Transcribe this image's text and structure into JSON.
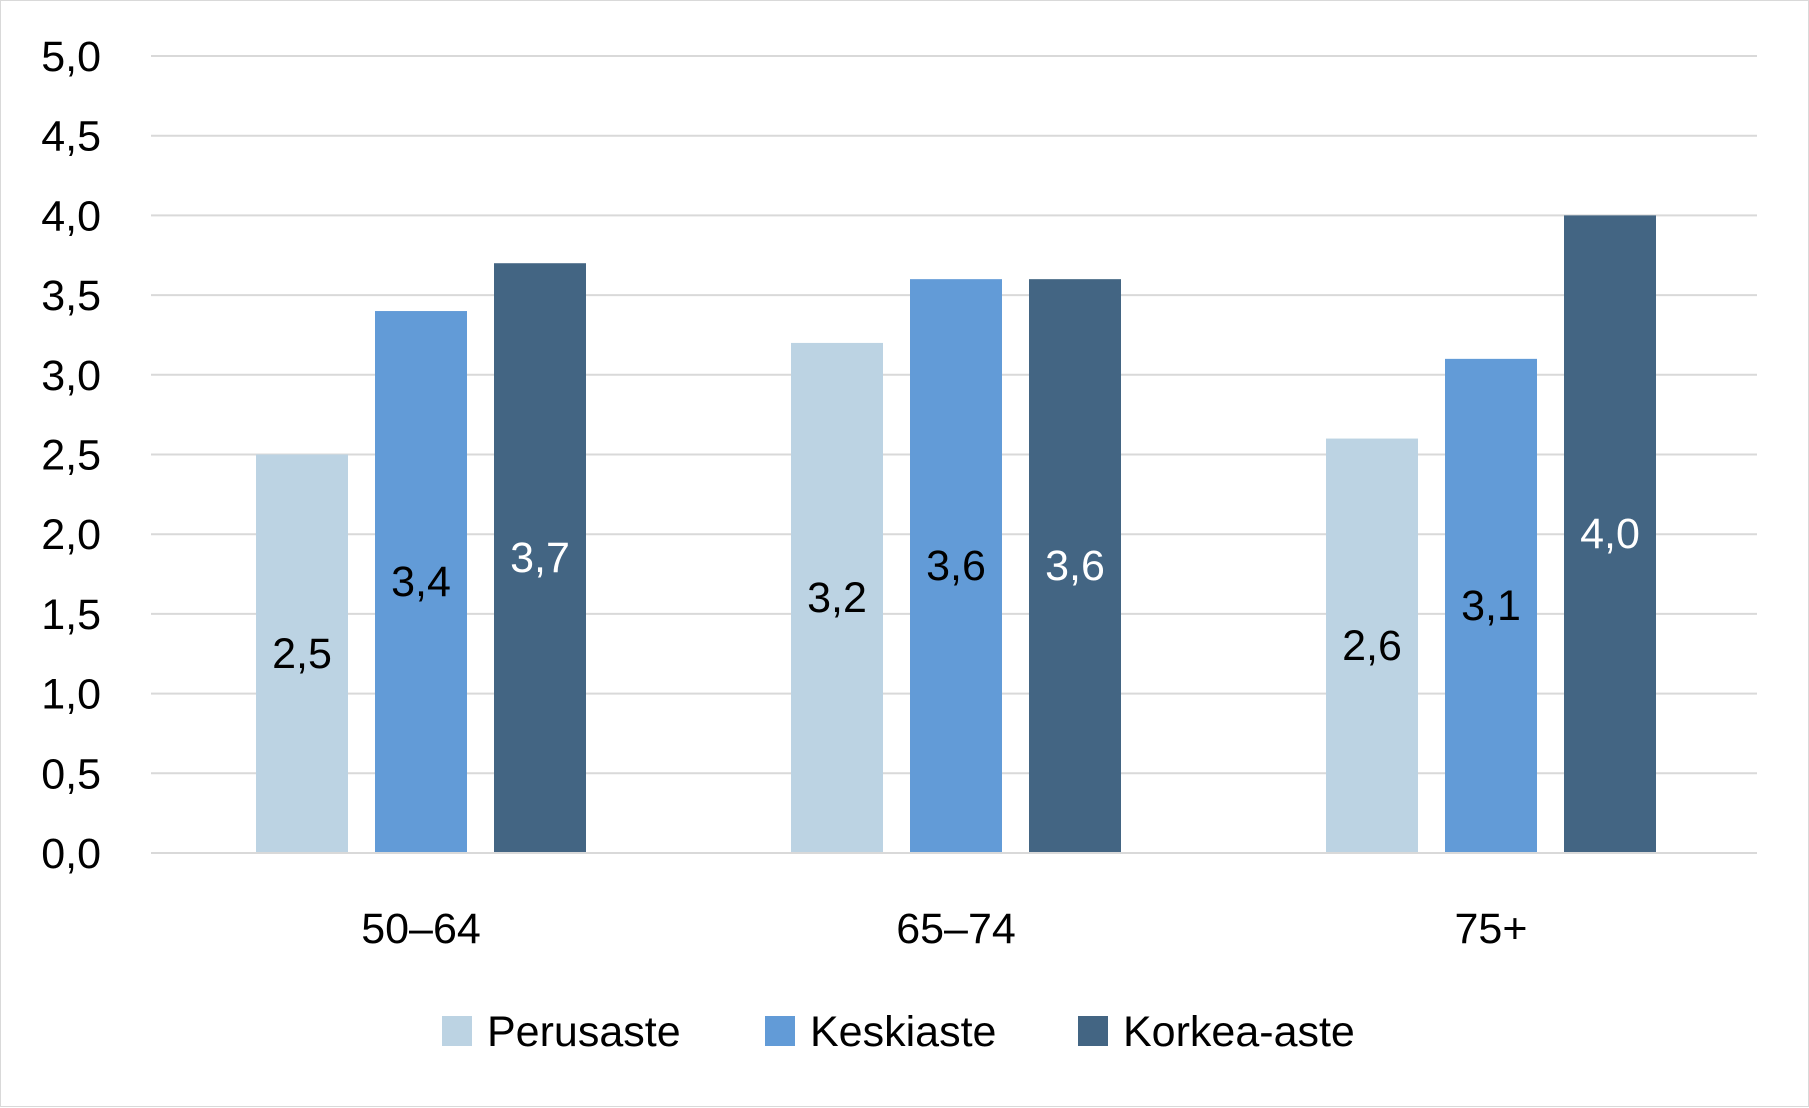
{
  "chart_data": {
    "type": "bar",
    "title": "",
    "xlabel": "",
    "ylabel": "",
    "categories": [
      "50–64",
      "65–74",
      "75+"
    ],
    "series": [
      {
        "name": "Perusaste",
        "values": [
          2.5,
          3.2,
          2.6
        ],
        "color": "#bcd3e3",
        "label_color": "#000000"
      },
      {
        "name": "Keskiaste",
        "values": [
          3.4,
          3.6,
          3.1
        ],
        "color": "#629bd7",
        "label_color": "#000000"
      },
      {
        "name": "Korkea-aste",
        "values": [
          3.7,
          3.6,
          4.0
        ],
        "color": "#436583",
        "label_color": "#ffffff"
      }
    ],
    "data_labels": [
      [
        "2,5",
        "3,2",
        "2,6"
      ],
      [
        "3,4",
        "3,6",
        "3,1"
      ],
      [
        "3,7",
        "3,6",
        "4,0"
      ]
    ],
    "ylim": [
      0,
      5
    ],
    "yticks": [
      "0,0",
      "0,5",
      "1,0",
      "1,5",
      "2,0",
      "2,5",
      "3,0",
      "3,5",
      "4,0",
      "4,5",
      "5,0"
    ],
    "grid": true,
    "legend_position": "bottom",
    "gridline_color": "#d9d9d9"
  }
}
